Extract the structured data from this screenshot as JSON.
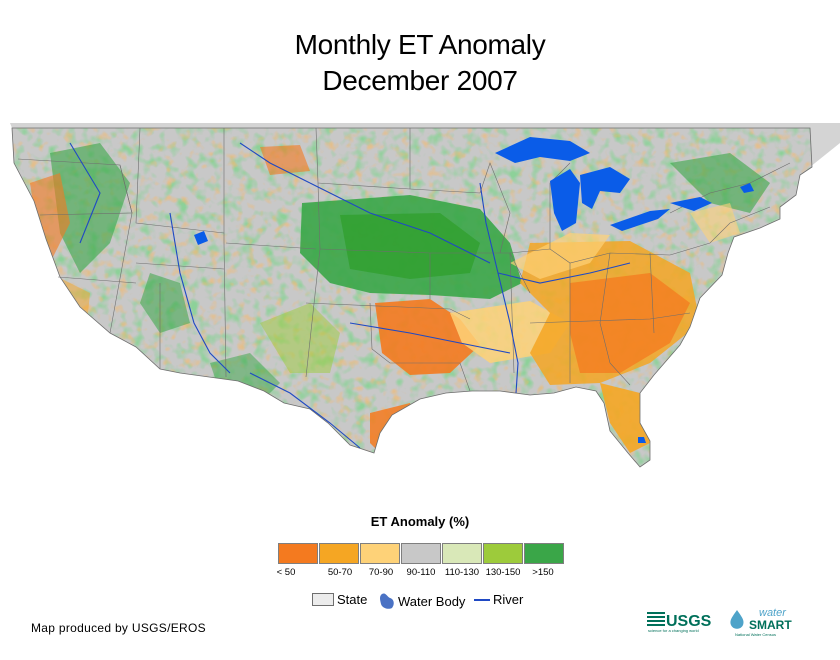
{
  "title": {
    "line1": "Monthly ET Anomaly",
    "line2": "December 2007"
  },
  "map": {
    "region": "Conterminous United States",
    "land_color": "#c8c8c8",
    "water_color": "#0a5ce8",
    "border_color": "#6e6e6e",
    "river_color": "#1f49c4"
  },
  "legend": {
    "title": "ET Anomaly (%)",
    "classes": [
      {
        "label": "< 50",
        "color": "#f47a1f"
      },
      {
        "label": "50-70",
        "color": "#f5a623"
      },
      {
        "label": "70-90",
        "color": "#fed278"
      },
      {
        "label": "90-110",
        "color": "#c8c8c8"
      },
      {
        "label": "110-130",
        "color": "#d9e8b8"
      },
      {
        "label": "130-150",
        "color": "#9dcb3b"
      },
      {
        "label": ">150",
        "color": "#3aa648"
      }
    ]
  },
  "key": {
    "state_label": "State",
    "water_label": "Water Body",
    "river_label": "River"
  },
  "credit": "Map produced by USGS/EROS",
  "logos": {
    "usgs": "USGS",
    "usgs_tagline": "science for a changing world",
    "watersmart_1": "water",
    "watersmart_2": "SMART",
    "watersmart_sub": "National Water Census",
    "brand_color": "#00705a",
    "water_blue": "#4ea3c9"
  }
}
